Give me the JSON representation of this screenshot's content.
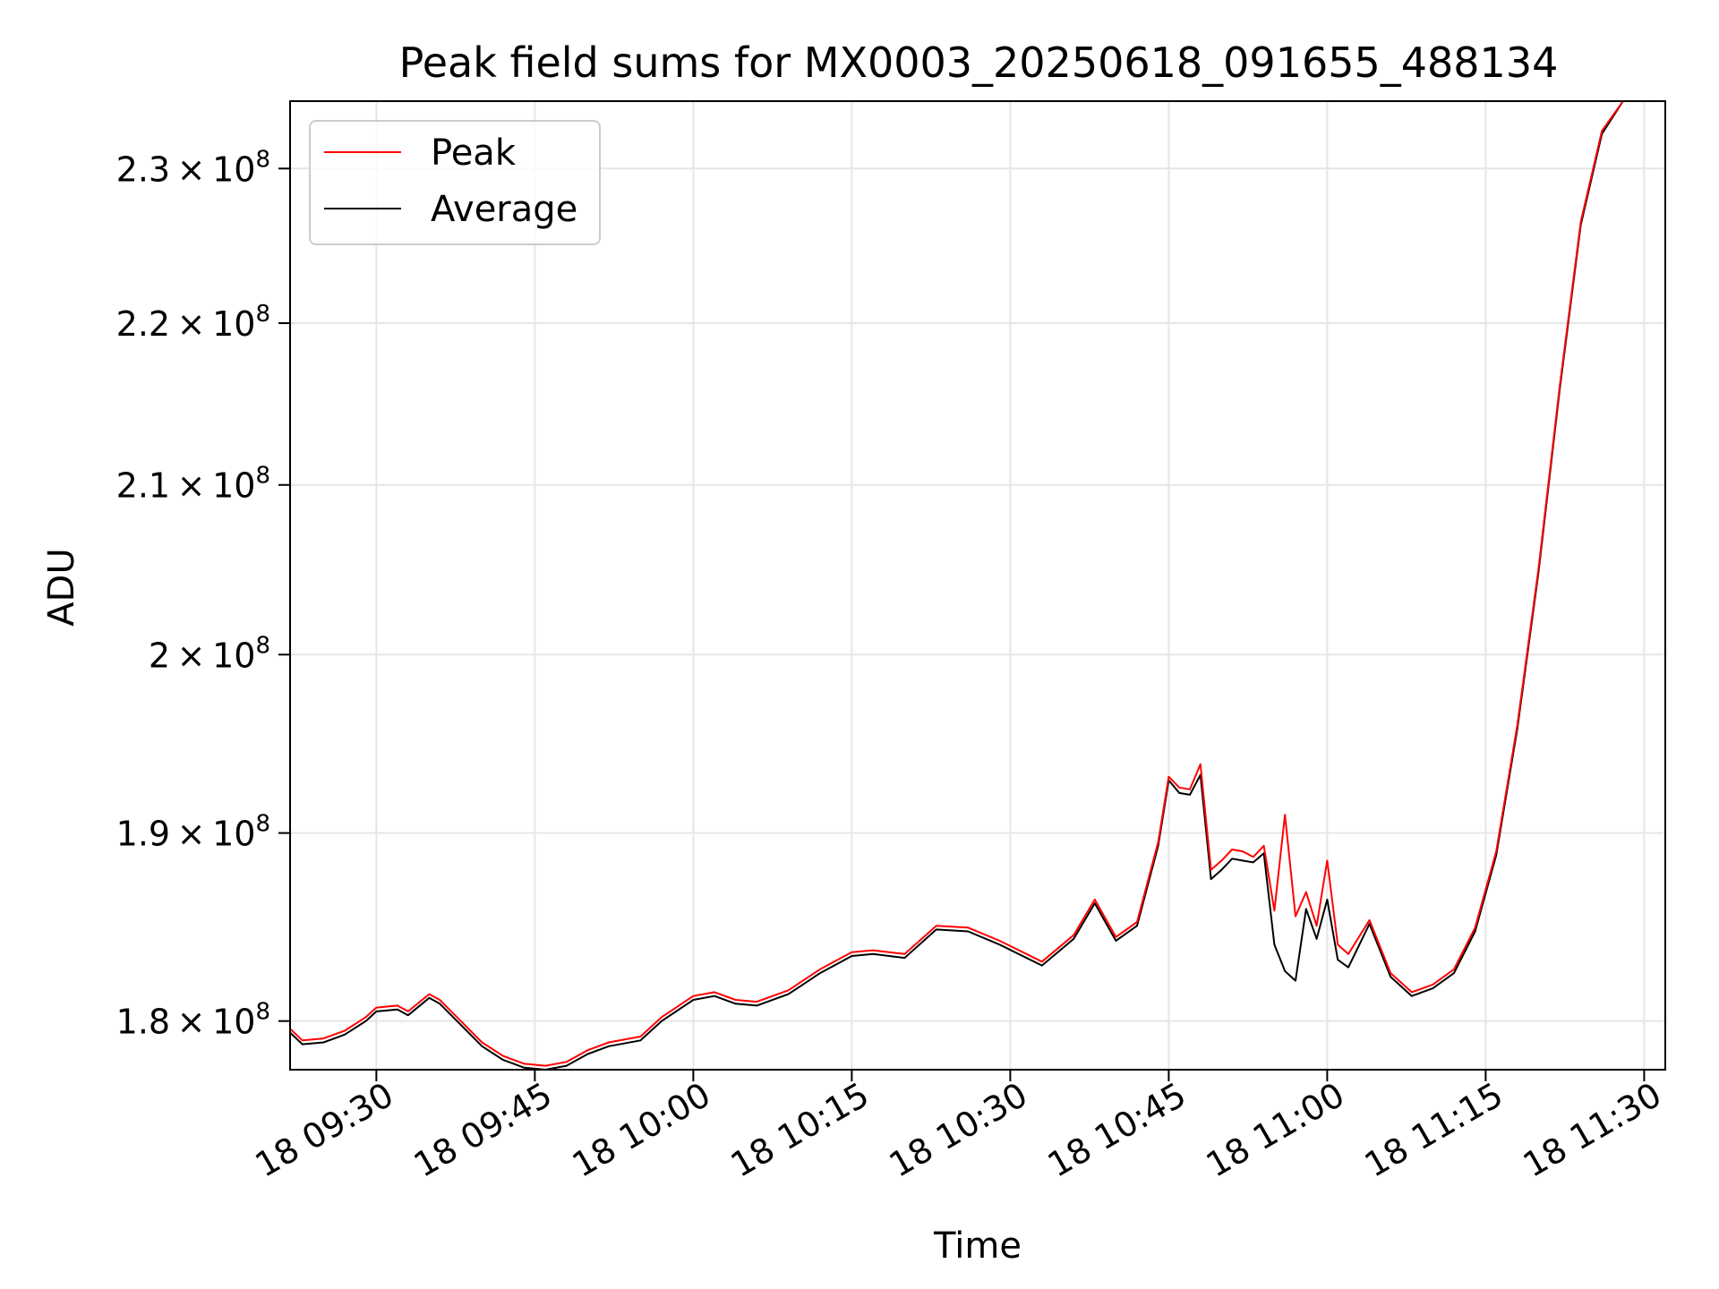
{
  "chart_data": {
    "type": "line",
    "title": "Peak field sums for MX0003_20250618_091655_488134",
    "xlabel": "Time",
    "ylabel": "ADU",
    "grid": true,
    "y_scale": "log",
    "legend_position": "top-left",
    "xlim": [
      "2025-06-18 09:21:50",
      "2025-06-18 11:32:00"
    ],
    "ylim": [
      177500000,
      234500000
    ],
    "x_ticks": [
      {
        "value": "2025-06-18 09:30",
        "label": "18 09:30"
      },
      {
        "value": "2025-06-18 09:45",
        "label": "18 09:45"
      },
      {
        "value": "2025-06-18 10:00",
        "label": "18 10:00"
      },
      {
        "value": "2025-06-18 10:15",
        "label": "18 10:15"
      },
      {
        "value": "2025-06-18 10:30",
        "label": "18 10:30"
      },
      {
        "value": "2025-06-18 10:45",
        "label": "18 10:45"
      },
      {
        "value": "2025-06-18 11:00",
        "label": "18 11:00"
      },
      {
        "value": "2025-06-18 11:15",
        "label": "18 11:15"
      },
      {
        "value": "2025-06-18 11:30",
        "label": "18 11:30"
      }
    ],
    "y_ticks": [
      {
        "value": 180000000,
        "mantissa": "1.8",
        "base": "10",
        "exponent": "8"
      },
      {
        "value": 190000000,
        "mantissa": "1.9",
        "base": "10",
        "exponent": "8"
      },
      {
        "value": 200000000,
        "mantissa": "2",
        "base": "10",
        "exponent": "8"
      },
      {
        "value": 210000000,
        "mantissa": "2.1",
        "base": "10",
        "exponent": "8"
      },
      {
        "value": 220000000,
        "mantissa": "2.2",
        "base": "10",
        "exponent": "8"
      },
      {
        "value": 230000000,
        "mantissa": "2.3",
        "base": "10",
        "exponent": "8"
      }
    ],
    "series": [
      {
        "name": "Peak",
        "color": "#ff0000",
        "points": [
          [
            "2025-06-18 09:21:50",
            179600000
          ],
          [
            "2025-06-18 09:23:00",
            179000000
          ],
          [
            "2025-06-18 09:25:00",
            179100000
          ],
          [
            "2025-06-18 09:27:00",
            179500000
          ],
          [
            "2025-06-18 09:29:00",
            180200000
          ],
          [
            "2025-06-18 09:30:00",
            180700000
          ],
          [
            "2025-06-18 09:32:00",
            180800000
          ],
          [
            "2025-06-18 09:33:00",
            180500000
          ],
          [
            "2025-06-18 09:35:00",
            181400000
          ],
          [
            "2025-06-18 09:36:00",
            181100000
          ],
          [
            "2025-06-18 09:38:00",
            180000000
          ],
          [
            "2025-06-18 09:40:00",
            178900000
          ],
          [
            "2025-06-18 09:42:00",
            178200000
          ],
          [
            "2025-06-18 09:44:00",
            177800000
          ],
          [
            "2025-06-18 09:46:00",
            177700000
          ],
          [
            "2025-06-18 09:48:00",
            177900000
          ],
          [
            "2025-06-18 09:50:00",
            178500000
          ],
          [
            "2025-06-18 09:52:00",
            178900000
          ],
          [
            "2025-06-18 09:55:00",
            179200000
          ],
          [
            "2025-06-18 09:57:00",
            180200000
          ],
          [
            "2025-06-18 10:00:00",
            181300000
          ],
          [
            "2025-06-18 10:02:00",
            181500000
          ],
          [
            "2025-06-18 10:04:00",
            181100000
          ],
          [
            "2025-06-18 10:06:00",
            181000000
          ],
          [
            "2025-06-18 10:09:00",
            181600000
          ],
          [
            "2025-06-18 10:12:00",
            182700000
          ],
          [
            "2025-06-18 10:15:00",
            183600000
          ],
          [
            "2025-06-18 10:17:00",
            183700000
          ],
          [
            "2025-06-18 10:20:00",
            183500000
          ],
          [
            "2025-06-18 10:23:00",
            185000000
          ],
          [
            "2025-06-18 10:26:00",
            184900000
          ],
          [
            "2025-06-18 10:29:00",
            184200000
          ],
          [
            "2025-06-18 10:33:00",
            183100000
          ],
          [
            "2025-06-18 10:36:00",
            184500000
          ],
          [
            "2025-06-18 10:38:00",
            186400000
          ],
          [
            "2025-06-18 10:40:00",
            184400000
          ],
          [
            "2025-06-18 10:42:00",
            185200000
          ],
          [
            "2025-06-18 10:44:00",
            189500000
          ],
          [
            "2025-06-18 10:45:00",
            193100000
          ],
          [
            "2025-06-18 10:46:00",
            192500000
          ],
          [
            "2025-06-18 10:47:00",
            192400000
          ],
          [
            "2025-06-18 10:48:00",
            193800000
          ],
          [
            "2025-06-18 10:49:00",
            188000000
          ],
          [
            "2025-06-18 10:50:00",
            188500000
          ],
          [
            "2025-06-18 10:51:00",
            189100000
          ],
          [
            "2025-06-18 10:52:00",
            189000000
          ],
          [
            "2025-06-18 10:53:00",
            188700000
          ],
          [
            "2025-06-18 10:54:00",
            189300000
          ],
          [
            "2025-06-18 10:55:00",
            185800000
          ],
          [
            "2025-06-18 10:56:00",
            191000000
          ],
          [
            "2025-06-18 10:57:00",
            185500000
          ],
          [
            "2025-06-18 10:58:00",
            186800000
          ],
          [
            "2025-06-18 10:59:00",
            185000000
          ],
          [
            "2025-06-18 11:00:00",
            188500000
          ],
          [
            "2025-06-18 11:01:00",
            184000000
          ],
          [
            "2025-06-18 11:02:00",
            183500000
          ],
          [
            "2025-06-18 11:04:00",
            185300000
          ],
          [
            "2025-06-18 11:06:00",
            182500000
          ],
          [
            "2025-06-18 11:08:00",
            181500000
          ],
          [
            "2025-06-18 11:10:00",
            181900000
          ],
          [
            "2025-06-18 11:12:00",
            182700000
          ],
          [
            "2025-06-18 11:14:00",
            184900000
          ],
          [
            "2025-06-18 11:16:00",
            189000000
          ],
          [
            "2025-06-18 11:18:00",
            196000000
          ],
          [
            "2025-06-18 11:20:00",
            205000000
          ],
          [
            "2025-06-18 11:22:00",
            216000000
          ],
          [
            "2025-06-18 11:24:00",
            226500000
          ],
          [
            "2025-06-18 11:26:00",
            232500000
          ],
          [
            "2025-06-18 11:28:00",
            234500000
          ]
        ]
      },
      {
        "name": "Average",
        "color": "#000000",
        "points": [
          [
            "2025-06-18 09:21:50",
            179400000
          ],
          [
            "2025-06-18 09:23:00",
            178800000
          ],
          [
            "2025-06-18 09:25:00",
            178900000
          ],
          [
            "2025-06-18 09:27:00",
            179300000
          ],
          [
            "2025-06-18 09:29:00",
            180000000
          ],
          [
            "2025-06-18 09:30:00",
            180500000
          ],
          [
            "2025-06-18 09:32:00",
            180600000
          ],
          [
            "2025-06-18 09:33:00",
            180300000
          ],
          [
            "2025-06-18 09:35:00",
            181200000
          ],
          [
            "2025-06-18 09:36:00",
            180900000
          ],
          [
            "2025-06-18 09:38:00",
            179800000
          ],
          [
            "2025-06-18 09:40:00",
            178700000
          ],
          [
            "2025-06-18 09:42:00",
            178000000
          ],
          [
            "2025-06-18 09:44:00",
            177600000
          ],
          [
            "2025-06-18 09:46:00",
            177500000
          ],
          [
            "2025-06-18 09:48:00",
            177700000
          ],
          [
            "2025-06-18 09:50:00",
            178300000
          ],
          [
            "2025-06-18 09:52:00",
            178700000
          ],
          [
            "2025-06-18 09:55:00",
            179000000
          ],
          [
            "2025-06-18 09:57:00",
            180000000
          ],
          [
            "2025-06-18 10:00:00",
            181100000
          ],
          [
            "2025-06-18 10:02:00",
            181300000
          ],
          [
            "2025-06-18 10:04:00",
            180900000
          ],
          [
            "2025-06-18 10:06:00",
            180800000
          ],
          [
            "2025-06-18 10:09:00",
            181400000
          ],
          [
            "2025-06-18 10:12:00",
            182500000
          ],
          [
            "2025-06-18 10:15:00",
            183400000
          ],
          [
            "2025-06-18 10:17:00",
            183500000
          ],
          [
            "2025-06-18 10:20:00",
            183300000
          ],
          [
            "2025-06-18 10:23:00",
            184800000
          ],
          [
            "2025-06-18 10:26:00",
            184700000
          ],
          [
            "2025-06-18 10:29:00",
            184000000
          ],
          [
            "2025-06-18 10:33:00",
            182900000
          ],
          [
            "2025-06-18 10:36:00",
            184300000
          ],
          [
            "2025-06-18 10:38:00",
            186200000
          ],
          [
            "2025-06-18 10:40:00",
            184200000
          ],
          [
            "2025-06-18 10:42:00",
            185000000
          ],
          [
            "2025-06-18 10:44:00",
            189300000
          ],
          [
            "2025-06-18 10:45:00",
            192900000
          ],
          [
            "2025-06-18 10:46:00",
            192200000
          ],
          [
            "2025-06-18 10:47:00",
            192100000
          ],
          [
            "2025-06-18 10:48:00",
            193200000
          ],
          [
            "2025-06-18 10:49:00",
            187500000
          ],
          [
            "2025-06-18 10:50:00",
            188000000
          ],
          [
            "2025-06-18 10:51:00",
            188600000
          ],
          [
            "2025-06-18 10:52:00",
            188500000
          ],
          [
            "2025-06-18 10:53:00",
            188400000
          ],
          [
            "2025-06-18 10:54:00",
            188900000
          ],
          [
            "2025-06-18 10:55:00",
            184000000
          ],
          [
            "2025-06-18 10:56:00",
            182600000
          ],
          [
            "2025-06-18 10:57:00",
            182100000
          ],
          [
            "2025-06-18 10:58:00",
            185900000
          ],
          [
            "2025-06-18 10:59:00",
            184300000
          ],
          [
            "2025-06-18 11:00:00",
            186400000
          ],
          [
            "2025-06-18 11:01:00",
            183200000
          ],
          [
            "2025-06-18 11:02:00",
            182800000
          ],
          [
            "2025-06-18 11:04:00",
            185100000
          ],
          [
            "2025-06-18 11:06:00",
            182300000
          ],
          [
            "2025-06-18 11:08:00",
            181300000
          ],
          [
            "2025-06-18 11:10:00",
            181700000
          ],
          [
            "2025-06-18 11:12:00",
            182500000
          ],
          [
            "2025-06-18 11:14:00",
            184700000
          ],
          [
            "2025-06-18 11:16:00",
            188800000
          ],
          [
            "2025-06-18 11:18:00",
            195800000
          ],
          [
            "2025-06-18 11:20:00",
            204800000
          ],
          [
            "2025-06-18 11:22:00",
            215800000
          ],
          [
            "2025-06-18 11:24:00",
            226300000
          ],
          [
            "2025-06-18 11:26:00",
            232300000
          ],
          [
            "2025-06-18 11:28:00",
            234500000
          ]
        ]
      }
    ]
  }
}
